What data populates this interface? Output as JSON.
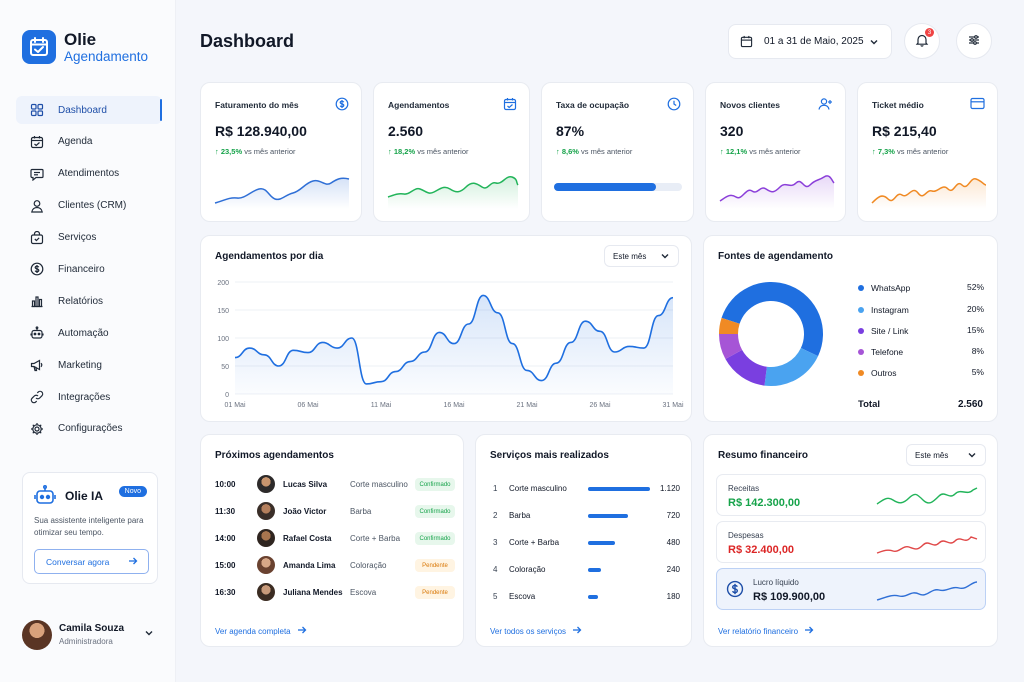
{
  "app": {
    "name": "Olie",
    "subtitle": "Agendamento"
  },
  "colors": {
    "accent": "#1f6fe0",
    "green": "#16a34a",
    "red": "#dc2626",
    "purple": "#8b3fd9",
    "orange": "#f08a24"
  },
  "sidebar": {
    "items": [
      {
        "label": "Dashboard",
        "icon": "grid-icon",
        "active": true
      },
      {
        "label": "Agenda",
        "icon": "calendar-icon"
      },
      {
        "label": "Atendimentos",
        "icon": "chat-icon"
      },
      {
        "label": "Clientes (CRM)",
        "icon": "user-icon"
      },
      {
        "label": "Serviços",
        "icon": "bag-icon"
      },
      {
        "label": "Financeiro",
        "icon": "dollar-icon"
      },
      {
        "label": "Relatórios",
        "icon": "bar-chart-icon"
      },
      {
        "label": "Automação",
        "icon": "robot-icon"
      },
      {
        "label": "Marketing",
        "icon": "megaphone-icon"
      },
      {
        "label": "Integrações",
        "icon": "link-icon"
      },
      {
        "label": "Configurações",
        "icon": "gear-icon"
      }
    ],
    "ia_card": {
      "title": "Olie IA",
      "badge": "Novo",
      "description": "Sua assistente inteligente para otimizar seu tempo.",
      "button": "Conversar agora"
    },
    "user": {
      "name": "Camila Souza",
      "role": "Administradora"
    }
  },
  "header": {
    "title": "Dashboard",
    "date_range": "01 a 31 de Maio, 2025",
    "notification_count": "3"
  },
  "kpis": [
    {
      "label": "Faturamento do mês",
      "value": "R$ 128.940,00",
      "delta": "23,5%",
      "delta_text": "vs mês anterior",
      "icon": "dollar-circle-icon",
      "color": "#2f6fd6"
    },
    {
      "label": "Agendamentos",
      "value": "2.560",
      "delta": "18,2%",
      "delta_text": "vs mês anterior",
      "icon": "calendar-check-icon",
      "color": "#22b45a"
    },
    {
      "label": "Taxa de ocupação",
      "value": "87%",
      "delta": "8,6%",
      "delta_text": "vs mês anterior",
      "icon": "clock-icon",
      "color": "#1f6fe0",
      "progress": 0.8
    },
    {
      "label": "Novos clientes",
      "value": "320",
      "delta": "12,1%",
      "delta_text": "vs mês anterior",
      "icon": "user-plus-icon",
      "color": "#8b3fd9"
    },
    {
      "label": "Ticket médio",
      "value": "R$ 215,40",
      "delta": "7,3%",
      "delta_text": "vs mês anterior",
      "icon": "card-icon",
      "color": "#f08a24"
    }
  ],
  "appointments_chart": {
    "title": "Agendamentos por dia",
    "filter": "Este mês"
  },
  "chart_data": [
    {
      "type": "area",
      "title": "Agendamentos por dia",
      "x": [
        "01 Mai",
        "02 Mai",
        "03 Mai",
        "04 Mai",
        "05 Mai",
        "06 Mai",
        "07 Mai",
        "08 Mai",
        "09 Mai",
        "10 Mai",
        "11 Mai",
        "12 Mai",
        "13 Mai",
        "14 Mai",
        "15 Mai",
        "16 Mai",
        "17 Mai",
        "18 Mai",
        "19 Mai",
        "20 Mai",
        "21 Mai",
        "22 Mai",
        "23 Mai",
        "24 Mai",
        "25 Mai",
        "26 Mai",
        "27 Mai",
        "28 Mai",
        "29 Mai",
        "30 Mai",
        "31 Mai"
      ],
      "xticks": [
        "01 Mai",
        "06 Mai",
        "11 Mai",
        "16 Mai",
        "21 Mai",
        "26 Mai",
        "31 Mai"
      ],
      "values": [
        65,
        82,
        70,
        50,
        78,
        74,
        92,
        82,
        100,
        18,
        22,
        40,
        58,
        75,
        110,
        90,
        125,
        176,
        145,
        90,
        42,
        24,
        55,
        92,
        130,
        112,
        75,
        85,
        82,
        140,
        172
      ],
      "ylim": [
        0,
        200
      ],
      "yticks": [
        0,
        50,
        100,
        150,
        200
      ],
      "grid": true
    },
    {
      "type": "pie",
      "title": "Fontes de agendamento",
      "categories": [
        "WhatsApp",
        "Instagram",
        "Site / Link",
        "Telefone",
        "Outros"
      ],
      "values": [
        52,
        20,
        15,
        8,
        5
      ],
      "colors": [
        "#1f6fe0",
        "#4aa3f0",
        "#7a3fe0",
        "#a655d6",
        "#f08a24"
      ],
      "total_label": "Total",
      "total_value": "2.560"
    }
  ],
  "sources": {
    "title": "Fontes de agendamento",
    "items": [
      {
        "label": "WhatsApp",
        "pct": "52%",
        "color": "#1f6fe0"
      },
      {
        "label": "Instagram",
        "pct": "20%",
        "color": "#4aa3f0"
      },
      {
        "label": "Site / Link",
        "pct": "15%",
        "color": "#7a3fe0"
      },
      {
        "label": "Telefone",
        "pct": "8%",
        "color": "#a655d6"
      },
      {
        "label": "Outros",
        "pct": "5%",
        "color": "#f08a24"
      }
    ],
    "total_label": "Total",
    "total_value": "2.560"
  },
  "upcoming": {
    "title": "Próximos agendamentos",
    "rows": [
      {
        "time": "10:00",
        "name": "Lucas Silva",
        "service": "Corte masculino",
        "status": "Confirmado"
      },
      {
        "time": "11:30",
        "name": "João Victor",
        "service": "Barba",
        "status": "Confirmado"
      },
      {
        "time": "14:00",
        "name": "Rafael Costa",
        "service": "Corte + Barba",
        "status": "Confirmado"
      },
      {
        "time": "15:00",
        "name": "Amanda Lima",
        "service": "Coloração",
        "status": "Pendente"
      },
      {
        "time": "16:30",
        "name": "Juliana Mendes",
        "service": "Escova",
        "status": "Pendente"
      }
    ],
    "link": "Ver agenda completa"
  },
  "services": {
    "title": "Serviços mais realizados",
    "rows": [
      {
        "rank": "1",
        "name": "Corte masculino",
        "value": "1.120",
        "ratio": 1.0
      },
      {
        "rank": "2",
        "name": "Barba",
        "value": "720",
        "ratio": 0.64
      },
      {
        "rank": "3",
        "name": "Corte + Barba",
        "value": "480",
        "ratio": 0.43
      },
      {
        "rank": "4",
        "name": "Coloração",
        "value": "240",
        "ratio": 0.21
      },
      {
        "rank": "5",
        "name": "Escova",
        "value": "180",
        "ratio": 0.16
      }
    ],
    "link": "Ver todos os serviços"
  },
  "finance": {
    "title": "Resumo financeiro",
    "filter": "Este mês",
    "items": [
      {
        "label": "Receitas",
        "value": "R$ 142.300,00",
        "color": "#16a34a"
      },
      {
        "label": "Despesas",
        "value": "R$ 32.400,00",
        "color": "#dc2626"
      },
      {
        "label": "Lucro líquido",
        "value": "R$ 109.900,00",
        "color": "#111827"
      }
    ],
    "link": "Ver relatório financeiro"
  }
}
